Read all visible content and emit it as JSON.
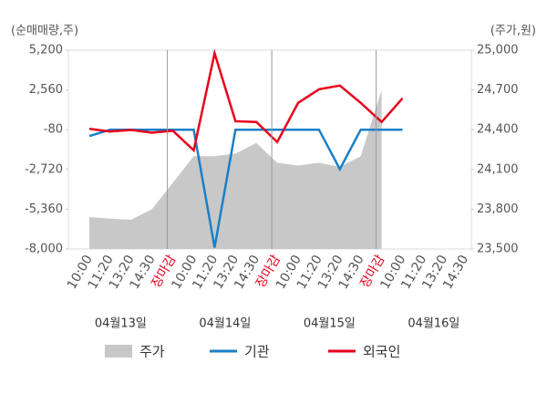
{
  "chart_data": {
    "type": "line",
    "y_label": "(순매매량,주)",
    "y2_label": "(주가,원)",
    "categories": [
      "10:00",
      "11:20",
      "13:20",
      "14:30",
      "장마감",
      "10:00",
      "11:20",
      "13:20",
      "14:30",
      "장마감",
      "10:00",
      "11:20",
      "13:20",
      "14:30",
      "장마감",
      "10:00",
      "11:20",
      "13:20",
      "14:30"
    ],
    "highlight": {
      "color": "#e8001c",
      "indices": [
        4,
        9,
        14
      ]
    },
    "date_labels": [
      "04월13일",
      "04월14일",
      "04월15일",
      "04월16일"
    ],
    "ylim": [
      -8000,
      5200
    ],
    "yticks": [
      {
        "value": 5200,
        "label": "5,200"
      },
      {
        "value": 2560,
        "label": "2,560"
      },
      -80,
      {
        "value": -2720,
        "label": "-2,720"
      },
      {
        "value": -5360,
        "label": "-5,360"
      },
      {
        "value": -8000,
        "label": "-8,000"
      }
    ],
    "y2lim": [
      23500,
      25000
    ],
    "y2ticks": [
      {
        "value": 25000,
        "label": "25,000"
      },
      {
        "value": 24700,
        "label": "24,700"
      },
      {
        "value": 24400,
        "label": "24,400"
      },
      {
        "value": 24100,
        "label": "24,100"
      },
      {
        "value": 23800,
        "label": "23,800"
      },
      {
        "value": 23500,
        "label": "23,500"
      }
    ],
    "grid": false,
    "series": [
      {
        "name": "주가",
        "type": "area",
        "axis": "y2",
        "color": "#c8c8c8",
        "values": [
          23740,
          23730,
          23720,
          23800,
          24000,
          24200,
          24200,
          24220,
          24300,
          24150,
          24130,
          24150,
          24120,
          24200,
          24700,
          null,
          null,
          null,
          null
        ]
      },
      {
        "name": "기관",
        "color": "#1a7fc8",
        "values": [
          -500,
          -80,
          -80,
          -80,
          -80,
          -80,
          -7900,
          -80,
          -80,
          -80,
          -80,
          -80,
          -2700,
          -80,
          -80,
          -80,
          null,
          null,
          null
        ]
      },
      {
        "name": "외국인",
        "color": "#e8001c",
        "values": [
          -20,
          -200,
          -100,
          -280,
          -150,
          -1450,
          5000,
          480,
          430,
          -900,
          1700,
          2600,
          2850,
          1700,
          430,
          2000,
          null,
          null,
          null
        ]
      }
    ]
  }
}
